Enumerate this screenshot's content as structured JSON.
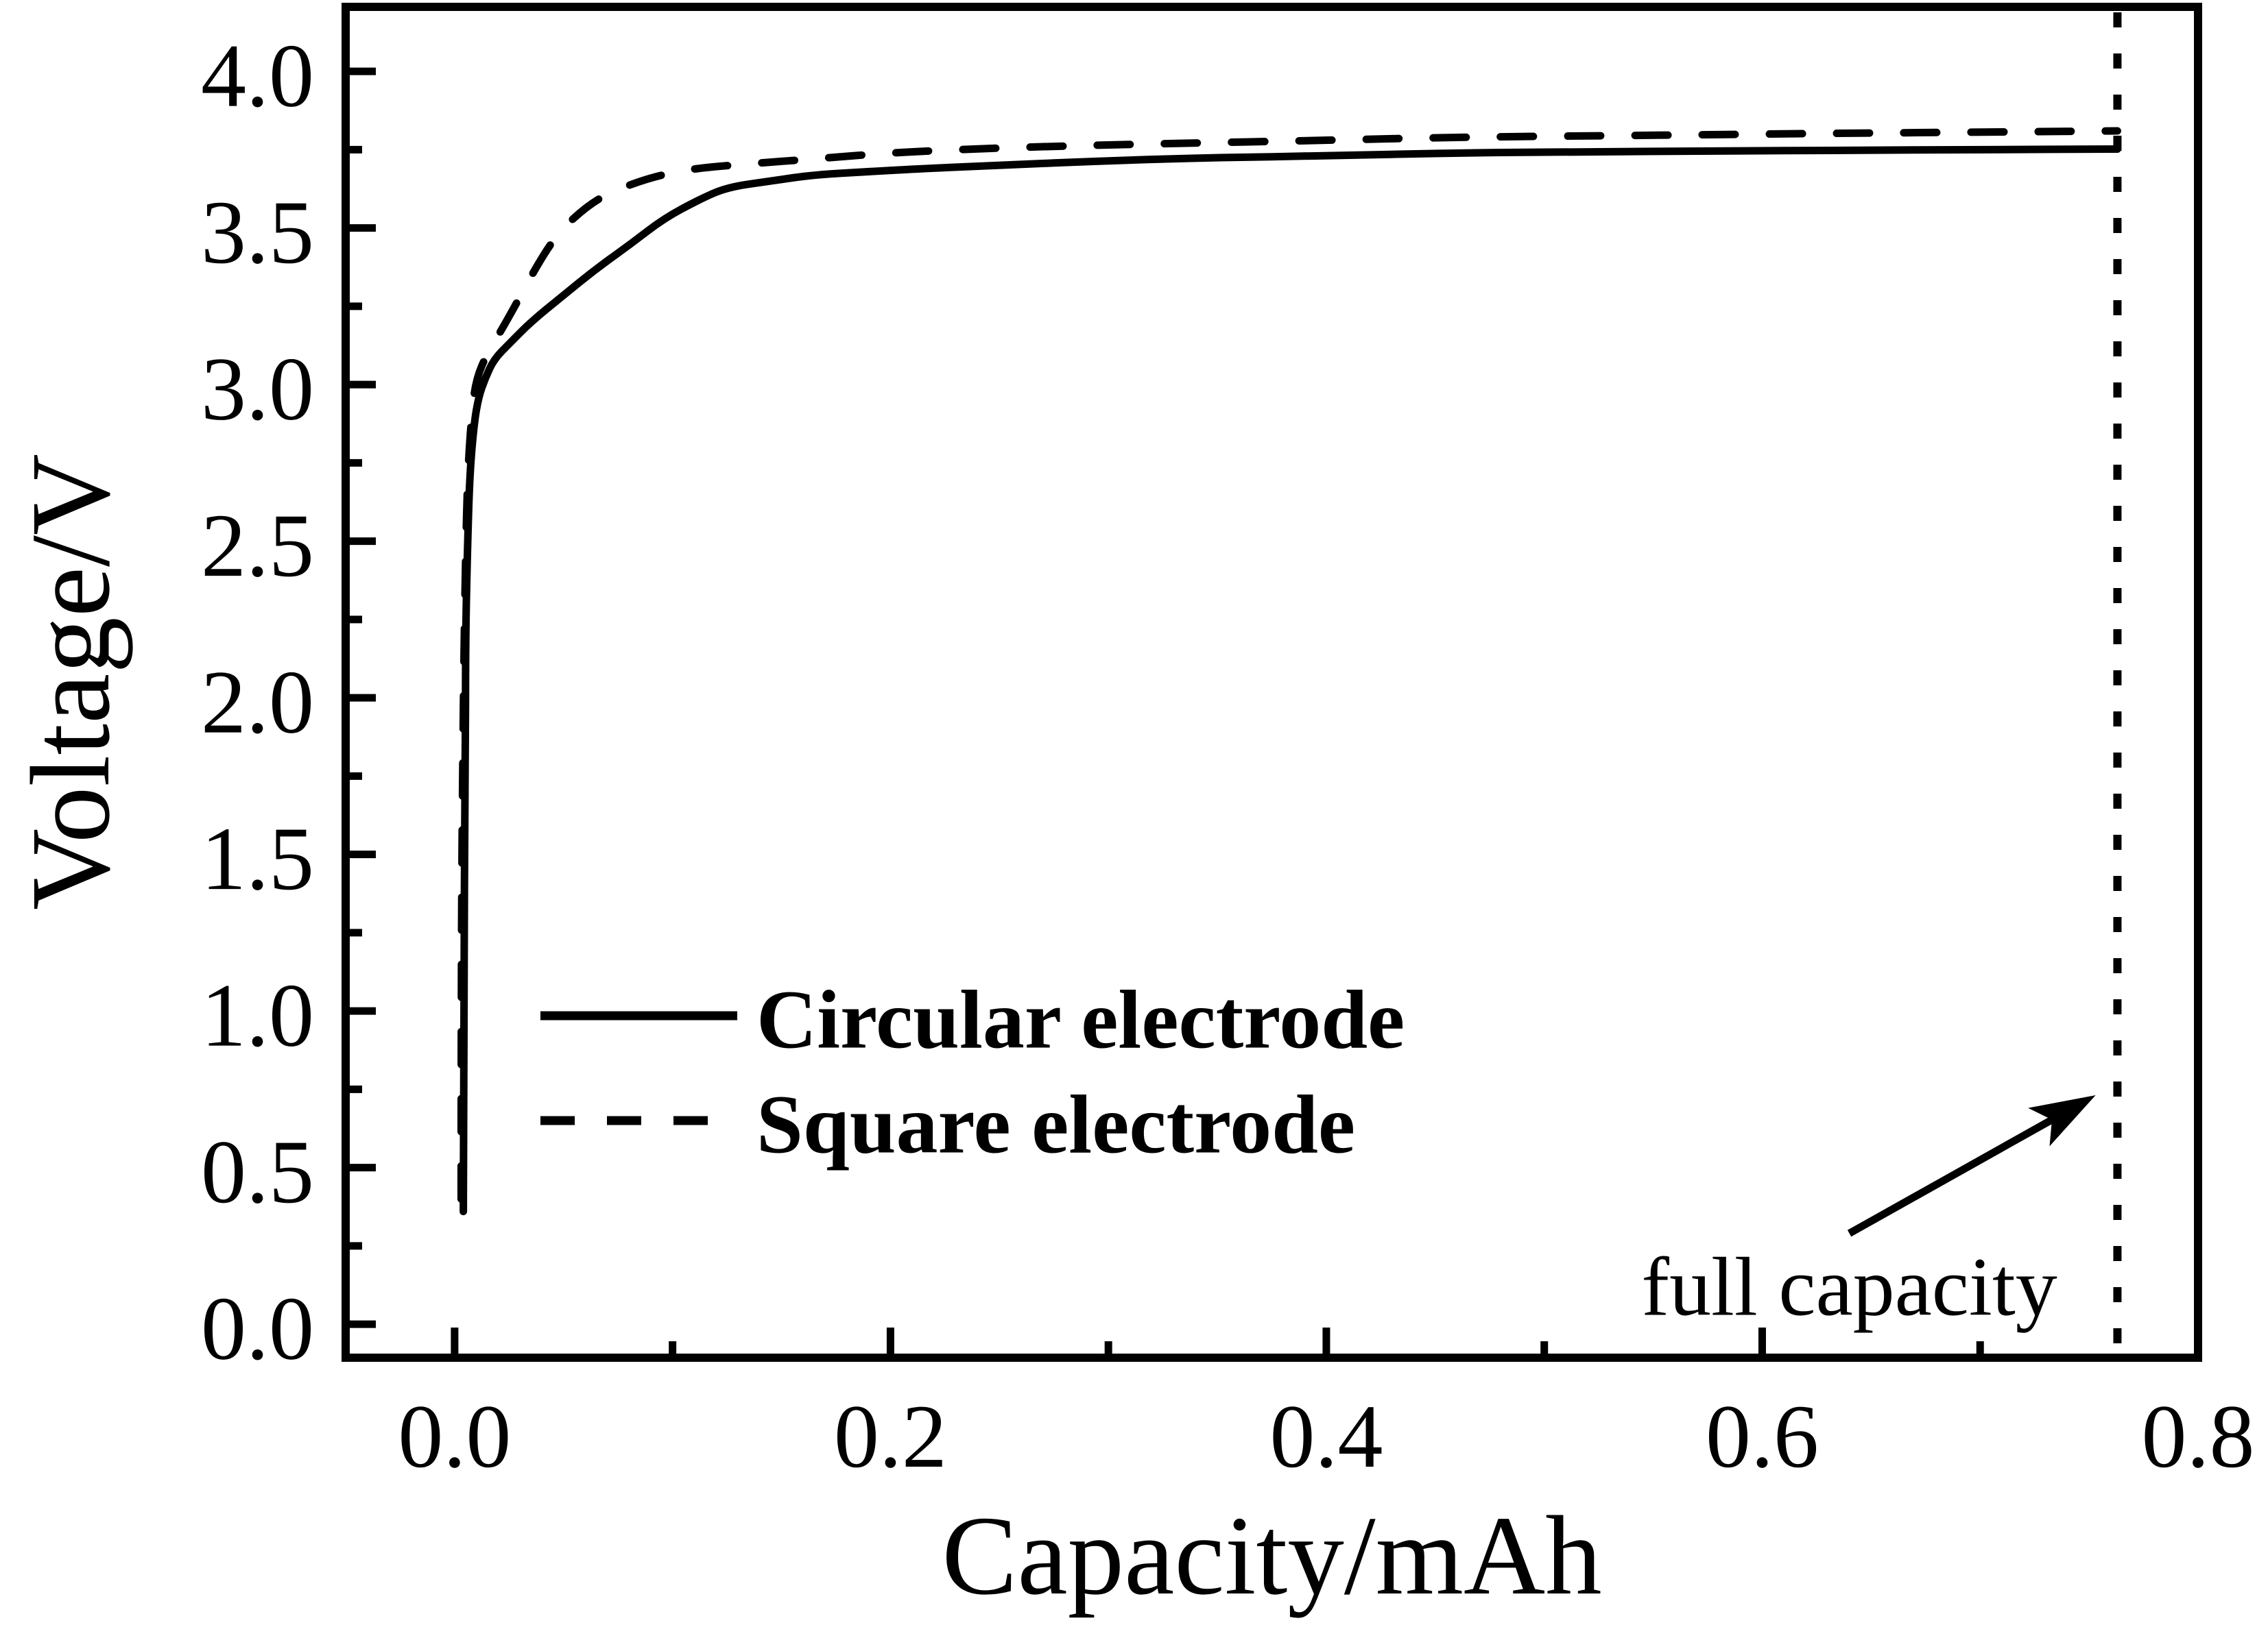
{
  "colors": {
    "foreground": "#000000",
    "background": "#ffffff"
  },
  "chart_data": {
    "type": "line",
    "title": "",
    "xlabel": "Capacity/mAh",
    "ylabel": "Voltage/V",
    "xlim": [
      -0.05,
      0.8
    ],
    "ylim": [
      -0.107,
      4.206
    ],
    "grid": false,
    "x_major_ticks": [
      0.0,
      0.2,
      0.4,
      0.6,
      0.8
    ],
    "x_tick_labels": [
      "0.0",
      "0.2",
      "0.4",
      "0.6",
      "0.8"
    ],
    "x_minor_ticks": [
      0.1,
      0.3,
      0.5,
      0.7
    ],
    "y_major_ticks": [
      0.0,
      0.5,
      1.0,
      1.5,
      2.0,
      2.5,
      3.0,
      3.5,
      4.0
    ],
    "y_tick_labels": [
      "0.0",
      "0.5",
      "1.0",
      "1.5",
      "2.0",
      "2.5",
      "3.0",
      "3.5",
      "4.0"
    ],
    "y_minor_ticks": [
      0.25,
      0.75,
      1.25,
      1.75,
      2.25,
      2.75,
      3.25,
      3.75
    ],
    "legend": {
      "position": "inside-lower-left",
      "items": [
        {
          "label": "Circular electrode",
          "style": "solid"
        },
        {
          "label": "Square electrode",
          "style": "dashed"
        }
      ]
    },
    "annotation": {
      "text": "full capacity",
      "text_at": [
        0.64,
        0.118
      ],
      "arrow_from": [
        0.64,
        0.29
      ],
      "arrow_to": [
        0.753,
        0.731
      ],
      "vline_x": 0.763,
      "vline_style": "dotted"
    },
    "series": [
      {
        "name": "Circular electrode",
        "style": "solid",
        "points": [
          [
            0.004,
            0.36
          ],
          [
            0.004,
            1.0
          ],
          [
            0.005,
            1.8
          ],
          [
            0.005,
            2.2
          ],
          [
            0.006,
            2.5
          ],
          [
            0.007,
            2.72
          ],
          [
            0.009,
            2.88
          ],
          [
            0.011,
            2.96
          ],
          [
            0.014,
            3.02
          ],
          [
            0.018,
            3.08
          ],
          [
            0.025,
            3.13
          ],
          [
            0.035,
            3.2
          ],
          [
            0.049,
            3.28
          ],
          [
            0.065,
            3.37
          ],
          [
            0.081,
            3.45
          ],
          [
            0.096,
            3.53
          ],
          [
            0.112,
            3.59
          ],
          [
            0.125,
            3.63
          ],
          [
            0.145,
            3.65
          ],
          [
            0.165,
            3.67
          ],
          [
            0.19,
            3.68
          ],
          [
            0.216,
            3.69
          ],
          [
            0.25,
            3.7
          ],
          [
            0.3,
            3.715
          ],
          [
            0.35,
            3.725
          ],
          [
            0.4,
            3.73
          ],
          [
            0.46,
            3.74
          ],
          [
            0.52,
            3.743
          ],
          [
            0.58,
            3.746
          ],
          [
            0.64,
            3.748
          ],
          [
            0.7,
            3.75
          ],
          [
            0.763,
            3.752
          ]
        ]
      },
      {
        "name": "Square electrode",
        "style": "dashed",
        "points": [
          [
            0.003,
            0.4
          ],
          [
            0.003,
            1.2
          ],
          [
            0.004,
            2.0
          ],
          [
            0.005,
            2.45
          ],
          [
            0.006,
            2.72
          ],
          [
            0.008,
            2.92
          ],
          [
            0.01,
            3.02
          ],
          [
            0.015,
            3.1
          ],
          [
            0.022,
            3.18
          ],
          [
            0.03,
            3.28
          ],
          [
            0.037,
            3.37
          ],
          [
            0.045,
            3.46
          ],
          [
            0.054,
            3.53
          ],
          [
            0.067,
            3.6
          ],
          [
            0.081,
            3.64
          ],
          [
            0.095,
            3.67
          ],
          [
            0.11,
            3.69
          ],
          [
            0.135,
            3.705
          ],
          [
            0.164,
            3.72
          ],
          [
            0.2,
            3.74
          ],
          [
            0.23,
            3.75
          ],
          [
            0.27,
            3.76
          ],
          [
            0.33,
            3.77
          ],
          [
            0.4,
            3.78
          ],
          [
            0.46,
            3.79
          ],
          [
            0.55,
            3.796
          ],
          [
            0.63,
            3.802
          ],
          [
            0.7,
            3.806
          ],
          [
            0.763,
            3.81
          ]
        ]
      }
    ]
  }
}
